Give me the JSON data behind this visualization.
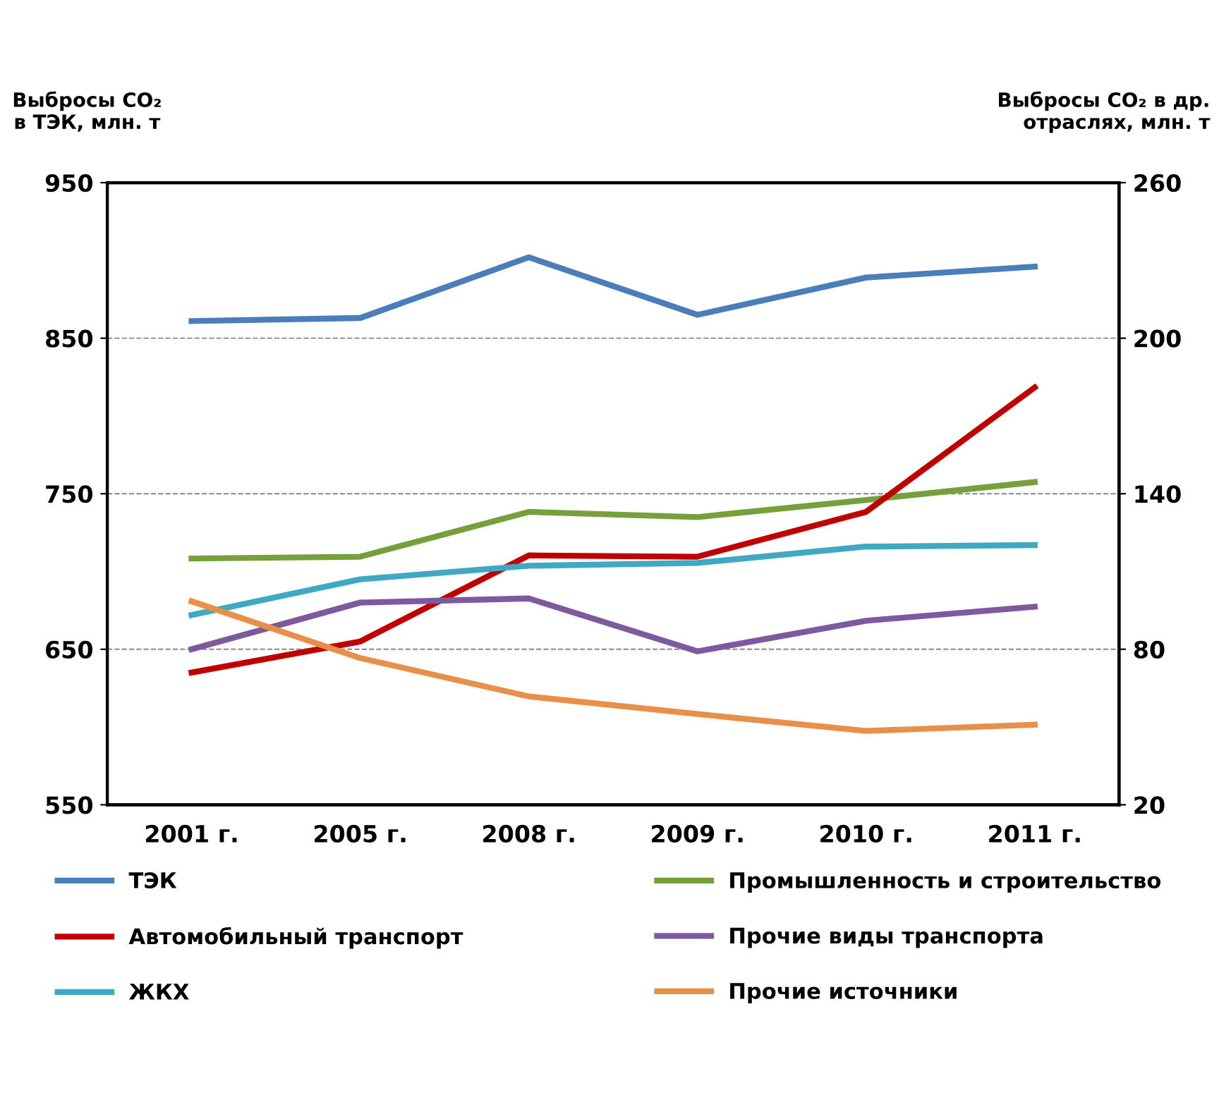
{
  "chart_data": {
    "type": "line",
    "ylabel": "Выбросы CO₂\nв ТЭК, млн. т",
    "y2label": "Выбросы CO₂ в др.\nотраслях, млн. т",
    "categories": [
      "2001 г.",
      "2005 г.",
      "2008 г.",
      "2009 г.",
      "2010 г.",
      "2011 г."
    ],
    "ylim": [
      550,
      950
    ],
    "yticks": [
      550,
      650,
      750,
      850,
      950
    ],
    "y2lim": [
      20,
      260
    ],
    "y2ticks": [
      20,
      80,
      140,
      200,
      260
    ],
    "grid": "y",
    "legend": "bottom",
    "line_style": "solid",
    "marker": "none",
    "series": [
      {
        "name": "ТЭК",
        "color": "#4a7ebb",
        "values": [
          861,
          863,
          902,
          865,
          889,
          896
        ]
      },
      {
        "name": "Промышленность и строительство",
        "color": "#77a03c",
        "axis": "y2",
        "values": [
          115,
          115.7,
          133,
          131,
          137.6,
          144.5
        ]
      },
      {
        "name": "Автомобильный транспорт",
        "color": "#c00000",
        "axis": "y2",
        "values": [
          71,
          83,
          116.2,
          115.7,
          133,
          181
        ]
      },
      {
        "name": "Прочие виды транспорта",
        "color": "#7d5a9e",
        "axis": "y2",
        "values": [
          80,
          98,
          99.6,
          79.2,
          91,
          96.4
        ]
      },
      {
        "name": "ЖКХ",
        "color": "#3fa8c2",
        "axis": "y2",
        "values": [
          93.2,
          107,
          112.2,
          113.3,
          119.6,
          120.2
        ]
      },
      {
        "name": "Прочие источники",
        "color": "#e8904a",
        "axis": "y2",
        "values": [
          98.5,
          76.6,
          61.8,
          55,
          48.5,
          50.9
        ]
      }
    ]
  }
}
